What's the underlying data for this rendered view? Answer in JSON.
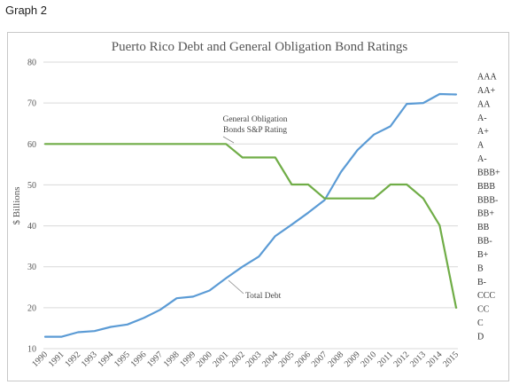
{
  "caption": "Graph 2",
  "chart_data": {
    "type": "line",
    "title": "Puerto Rico Debt and General Obligation Bond Ratings",
    "ylabel": "$ Billions",
    "xlabel": "",
    "ylim": [
      10,
      80
    ],
    "y_ticks": [
      "10",
      "20",
      "30",
      "40",
      "50",
      "60",
      "70",
      "80"
    ],
    "categories": [
      "1990",
      "1991",
      "1992",
      "1993",
      "1994",
      "1995",
      "1996",
      "1997",
      "1998",
      "1999",
      "2000",
      "2001",
      "2002",
      "2003",
      "2004",
      "2005",
      "2006",
      "2007",
      "2008",
      "2009",
      "2010",
      "2011",
      "2012",
      "2013",
      "2014",
      "2015"
    ],
    "right_axis_ticks": [
      "AAA",
      "AA+",
      "AA",
      "A-",
      "A+",
      "A",
      "A-",
      "BBB+",
      "BBB",
      "BBB-",
      "BB+",
      "BB",
      "BB-",
      "B+",
      "B",
      "B-",
      "CCC",
      "CC",
      "C",
      "D"
    ],
    "grid": true,
    "series": [
      {
        "name": "Total Debt",
        "color": "#5b9bd5",
        "values": [
          12.9,
          12.9,
          14.0,
          14.3,
          15.3,
          15.9,
          17.5,
          19.5,
          22.3,
          22.7,
          24.2,
          27.2,
          30.0,
          32.5,
          37.5,
          40.3,
          43.2,
          46.3,
          53.2,
          58.5,
          62.3,
          64.3,
          69.8,
          70.0,
          72.2,
          72.1
        ]
      },
      {
        "name": "General Obligation Bonds S&P Rating",
        "color": "#70ad47",
        "values": [
          60,
          60,
          60,
          60,
          60,
          60,
          60,
          60,
          60,
          60,
          60,
          60,
          56.7,
          56.7,
          56.7,
          50.1,
          50.1,
          46.7,
          46.7,
          46.7,
          46.7,
          50.1,
          50.1,
          46.7,
          40.1,
          20.0
        ]
      }
    ],
    "annotations": [
      {
        "lines": [
          "General Obligation",
          "Bonds S&P Rating"
        ],
        "series": "General Obligation Bonds S&P Rating"
      },
      {
        "lines": [
          "Total Debt"
        ],
        "series": "Total Debt"
      }
    ]
  }
}
